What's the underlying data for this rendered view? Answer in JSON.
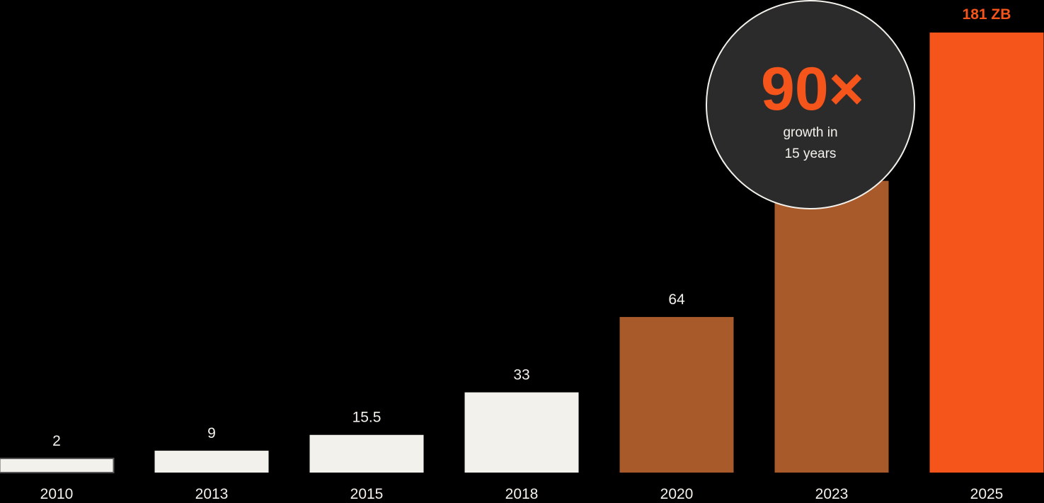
{
  "chart_data": {
    "type": "bar",
    "categories": [
      "2010",
      "2013",
      "2015",
      "2018",
      "2020",
      "2023",
      "2025"
    ],
    "values": [
      2,
      9,
      15.5,
      33,
      64,
      120,
      181
    ],
    "data_labels": [
      "2",
      "9",
      "15.5",
      "33",
      "64",
      "",
      "181 ZB"
    ],
    "ylim": [
      0,
      181
    ],
    "grid": false,
    "legend": "none",
    "bar_colors": [
      "#f3f1ec",
      "#f3f1ec",
      "#f3f1ec",
      "#f3f1ec",
      "#a85a2b",
      "#a85a2b",
      "#f5541b"
    ],
    "first_bar_outline": "#555555",
    "label_color": "#f3f1ec",
    "highlight_color": "#f5541b",
    "background": "#000000"
  },
  "callout": {
    "big_text": "90×",
    "line1": "growth in",
    "line2": "15 years",
    "fill": "#2b2b2b",
    "stroke": "#f3f1ec"
  }
}
